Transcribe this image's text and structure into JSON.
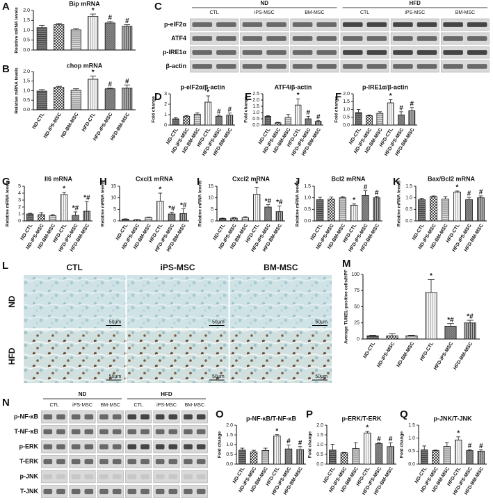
{
  "chart_data": [
    {
      "type": "bar",
      "panel": "A",
      "title": "Bip mRNA",
      "y_label": "Relative mRNA levels",
      "categories": [
        null,
        null,
        null,
        null,
        null,
        null
      ],
      "values": [
        1.13,
        1.28,
        1.02,
        1.7,
        1.37,
        1.2
      ],
      "errors": [
        0.12,
        0.06,
        0.06,
        0.12,
        0.07,
        0.08
      ],
      "annotations": [
        null,
        null,
        null,
        "*",
        "#",
        "#"
      ],
      "ylim": [
        0,
        2
      ],
      "yticks": [
        {
          "value": 0,
          "label": "0.0"
        },
        {
          "value": 0.5,
          "label": "0.5"
        },
        {
          "value": 1,
          "label": "1.0"
        },
        {
          "value": 1.5,
          "label": "1.5"
        },
        {
          "value": 2,
          "label": "2.0"
        }
      ]
    },
    {
      "type": "bar",
      "panel": "B",
      "title": "chop mRNA",
      "y_label": "Relative mRNA levels",
      "categories": [
        "ND-CTL",
        "ND-iPS-MSC",
        "ND-BM-MSC",
        "HFD-CTL",
        "HFD-iPS-MSC",
        "HFD-BM-MSC"
      ],
      "values": [
        0.98,
        1.17,
        1.02,
        1.6,
        1.1,
        1.13
      ],
      "errors": [
        0.08,
        0.06,
        0.08,
        0.17,
        0.03,
        0.17
      ],
      "annotations": [
        null,
        null,
        null,
        "*",
        "#",
        "#"
      ],
      "ylim": [
        0,
        2
      ],
      "yticks": [
        {
          "value": 0,
          "label": "0.0"
        },
        {
          "value": 0.5,
          "label": "0.5"
        },
        {
          "value": 1,
          "label": "1.0"
        },
        {
          "value": 1.5,
          "label": "1.5"
        },
        {
          "value": 2,
          "label": "2.0"
        }
      ]
    },
    {
      "type": "bar",
      "panel": "D",
      "title": "p-eIF2α/β-actin",
      "y_label": "Fold change",
      "categories": [
        "ND-CTL",
        "ND-iPS-MSC",
        "ND-BM-MSC",
        "HFD-CTL",
        "HFD-iPS-MSC",
        "HFD-BM-MSC"
      ],
      "values": [
        0.6,
        0.85,
        1.05,
        2.2,
        0.85,
        0.95
      ],
      "errors": [
        0.1,
        0.07,
        0.12,
        0.6,
        0.1,
        0.2
      ],
      "annotations": [
        null,
        null,
        null,
        "*",
        "#",
        "#"
      ],
      "ylim": [
        0,
        3
      ],
      "yticks": [
        0,
        1,
        2,
        3
      ]
    },
    {
      "type": "bar",
      "panel": "E",
      "title": "ATF4/β-actin",
      "y_label": "Fold change",
      "categories": [
        "ND-CTL",
        "ND-iPS-MSC",
        "ND-BM-MSC",
        "HFD-CTL",
        "HFD-iPS-MSC",
        "HFD-BM-MSC"
      ],
      "values": [
        0.7,
        0.18,
        0.6,
        1.6,
        0.5,
        0.3
      ],
      "errors": [
        0.05,
        0.04,
        0.25,
        0.5,
        0.2,
        0.05
      ],
      "annotations": [
        null,
        null,
        null,
        "*",
        "#",
        "#"
      ],
      "ylim": [
        0,
        2.5
      ],
      "yticks": [
        {
          "value": 0,
          "label": "0.0"
        },
        {
          "value": 0.5,
          "label": "0.5"
        },
        {
          "value": 1,
          "label": "1.0"
        },
        {
          "value": 1.5,
          "label": "1.5"
        },
        {
          "value": 2,
          "label": "2.0"
        },
        2.5
      ]
    },
    {
      "type": "bar",
      "panel": "F",
      "title": "p-IRE1α/β-actin",
      "y_label": "Fold change",
      "categories": [
        "ND-CTL",
        "ND-iPS-MSC",
        "ND-BM-MSC",
        "HFD-CTL",
        "HFD-iPS-MSC",
        "HFD-BM-MSC"
      ],
      "values": [
        0.8,
        0.6,
        0.75,
        1.42,
        0.65,
        0.92
      ],
      "errors": [
        0.2,
        0.05,
        0.1,
        0.2,
        0.2,
        0.2
      ],
      "annotations": [
        null,
        null,
        null,
        "*",
        "#",
        "#"
      ],
      "ylim": [
        0,
        2
      ],
      "yticks": [
        {
          "value": 0,
          "label": "0.0"
        },
        {
          "value": 0.5,
          "label": "0.5"
        },
        {
          "value": 1,
          "label": "1.0"
        },
        {
          "value": 1.5,
          "label": "1.5"
        },
        {
          "value": 2,
          "label": "2.0"
        }
      ]
    },
    {
      "type": "bar",
      "panel": "G",
      "title": "Il6 mRNA",
      "y_label": "Relative mRNA levels",
      "categories": [
        "ND-CTL",
        "ND-iPS-MSC",
        "ND-BM-MSC",
        "HFD-CTL",
        "HFD-iPS-MSC",
        "HFD-BM-MSC"
      ],
      "values": [
        1.0,
        0.9,
        0.75,
        3.8,
        0.8,
        1.4
      ],
      "errors": [
        0.1,
        0.3,
        0.15,
        0.3,
        0.5,
        1.4
      ],
      "annotations": [
        null,
        null,
        null,
        "*",
        "*#",
        "*#"
      ],
      "ylim": [
        0,
        5
      ],
      "yticks": [
        0,
        1,
        2,
        3,
        4,
        5
      ]
    },
    {
      "type": "bar",
      "panel": "H",
      "title": "Cxcl1 mRNA",
      "y_label": "Relative mRNA levels",
      "categories": [
        "ND-CTL",
        "ND-iPS-MSC",
        "ND-BM-MSC",
        "HFD-CTL",
        "HFD-iPS-MSC",
        "HFD-BM-MSC"
      ],
      "values": [
        0.8,
        0.5,
        1.5,
        8.5,
        3.0,
        3.2
      ],
      "errors": [
        0.1,
        0.1,
        0.2,
        3.5,
        0.8,
        2.0
      ],
      "annotations": [
        null,
        null,
        null,
        "*",
        "*#",
        "*#"
      ],
      "ylim": [
        0,
        15
      ],
      "yticks": [
        0,
        5,
        10,
        15
      ]
    },
    {
      "type": "bar",
      "panel": "I",
      "title": "Cxcl2 mRNA",
      "y_label": "Relative mRNA levels",
      "categories": [
        "ND-CTL",
        "ND-iPS-MSC",
        "ND-BM-MSC",
        "HFD-CTL",
        "HFD-iPS-MSC",
        "HFD-BM-MSC"
      ],
      "values": [
        1.0,
        1.2,
        1.4,
        11.5,
        6.0,
        4.0
      ],
      "errors": [
        0.2,
        0.3,
        0.4,
        3.0,
        1.0,
        2.5
      ],
      "annotations": [
        null,
        null,
        null,
        "*",
        "*#",
        "*#"
      ],
      "ylim": [
        0,
        15
      ],
      "yticks": [
        0,
        5,
        10,
        15
      ]
    },
    {
      "type": "bar",
      "panel": "J",
      "title": "Bcl2 mRNA",
      "y_label": "Relative mRNA levels",
      "categories": [
        "ND-CTL",
        "ND-iPS-MSC",
        "ND-BM-MSC",
        "HFD-CTL",
        "HFD-iPS-MSC",
        "HFD-BM-MSC"
      ],
      "values": [
        0.92,
        0.95,
        1.0,
        0.68,
        1.1,
        1.0
      ],
      "errors": [
        0.1,
        0.08,
        0.05,
        0.06,
        0.2,
        0.06
      ],
      "annotations": [
        null,
        null,
        null,
        "*",
        "#",
        "#"
      ],
      "ylim": [
        0,
        1.5
      ],
      "yticks": [
        {
          "value": 0,
          "label": "0.0"
        },
        {
          "value": 0.5,
          "label": "0.5"
        },
        {
          "value": 1,
          "label": "1.0"
        },
        {
          "value": 1.5,
          "label": "1.5"
        }
      ]
    },
    {
      "type": "bar",
      "panel": "K",
      "title": "Bax/Bcl2 mRNA",
      "y_label": "Relative mRNA levels",
      "categories": [
        "ND-CTL",
        "ND-iPS-MSC",
        "ND-BM-MSC",
        "HFD-CTL",
        "HFD-iPS-MSC",
        "HFD-BM-MSC"
      ],
      "values": [
        0.92,
        1.05,
        0.95,
        1.25,
        0.92,
        1.0
      ],
      "errors": [
        0.05,
        0.03,
        0.1,
        0.04,
        0.1,
        0.08
      ],
      "annotations": [
        null,
        null,
        null,
        "*",
        "#",
        "#"
      ],
      "ylim": [
        0,
        1.5
      ],
      "yticks": [
        {
          "value": 0,
          "label": "0.0"
        },
        {
          "value": 0.5,
          "label": "0.5"
        },
        {
          "value": 1,
          "label": "1.0"
        },
        {
          "value": 1.5,
          "label": "1.5"
        }
      ]
    },
    {
      "type": "bar",
      "panel": "M",
      "y_label": "Average TUNEL-positive cells/HPF",
      "categories": [
        "ND-CTL",
        "ND-iPS-MSC",
        "ND-BM-MSC",
        "HFD-CTL",
        "HFD-iPS-MSC",
        "HFD-BM-MSC"
      ],
      "values": [
        5,
        5,
        5,
        72,
        20,
        25
      ],
      "errors": [
        1,
        3,
        1,
        20,
        4,
        4
      ],
      "annotations": [
        null,
        null,
        null,
        "*",
        "*#",
        "*#"
      ],
      "ylim": [
        0,
        100
      ],
      "yticks": [
        0,
        25,
        50,
        75,
        100
      ]
    },
    {
      "type": "bar",
      "panel": "O",
      "title": "p-NF-κB/T-NF-κB",
      "y_label": "Fold change",
      "categories": [
        "ND-CTL",
        "ND-iPS-MSC",
        "ND-BM-MSC",
        "HFD-CTL",
        "HFD-iPS-MSC",
        "HFD-BM-MSC"
      ],
      "values": [
        0.72,
        0.63,
        0.7,
        1.45,
        0.78,
        0.75
      ],
      "errors": [
        0.1,
        0.08,
        0.12,
        0.06,
        0.2,
        0.15
      ],
      "annotations": [
        null,
        null,
        null,
        "*",
        "#",
        "#"
      ],
      "ylim": [
        0,
        2
      ],
      "yticks": [
        {
          "value": 0,
          "label": "0.0"
        },
        {
          "value": 0.5,
          "label": "0.5"
        },
        {
          "value": 1,
          "label": "1.0"
        },
        {
          "value": 1.5,
          "label": "1.5"
        },
        {
          "value": 2,
          "label": "2.0"
        }
      ]
    },
    {
      "type": "bar",
      "panel": "P",
      "title": "p-ERK/T-ERK",
      "y_label": "Fold change",
      "categories": [
        "ND-CTL",
        "ND-iPS-MSC",
        "ND-BM-MSC",
        "HFD-CTL",
        "HFD-iPS-MSC",
        "HFD-BM-MSC"
      ],
      "values": [
        0.72,
        0.58,
        0.8,
        1.6,
        1.05,
        0.9
      ],
      "errors": [
        0.3,
        0.02,
        0.3,
        0.08,
        0.05,
        0.2
      ],
      "annotations": [
        null,
        null,
        null,
        "*",
        "#",
        "#"
      ],
      "ylim": [
        0,
        2
      ],
      "yticks": [
        {
          "value": 0,
          "label": "0.0"
        },
        {
          "value": 0.5,
          "label": "0.5"
        },
        {
          "value": 1,
          "label": "1.0"
        },
        {
          "value": 1.5,
          "label": "1.5"
        },
        {
          "value": 2,
          "label": "2.0"
        }
      ]
    },
    {
      "type": "bar",
      "panel": "Q",
      "title": "p-JNK/T-JNK",
      "y_label": "Fold change",
      "categories": [
        "ND-CTL",
        "ND-iPS-MSC",
        "ND-BM-MSC",
        "HFD-CTL",
        "HFD-iPS-MSC",
        "HFD-BM-MSC"
      ],
      "values": [
        0.55,
        0.52,
        0.68,
        0.93,
        0.52,
        0.5
      ],
      "errors": [
        0.15,
        0.02,
        0.15,
        0.12,
        0.04,
        0.05
      ],
      "annotations": [
        null,
        null,
        null,
        "*",
        "#",
        "#"
      ],
      "ylim": [
        0,
        1.5
      ],
      "yticks": [
        {
          "value": 0,
          "label": "0.0"
        },
        {
          "value": 0.5,
          "label": "0.5"
        },
        {
          "value": 1,
          "label": "1.0"
        },
        {
          "value": 1.5,
          "label": "1.5"
        }
      ]
    }
  ],
  "blots": [
    {
      "panel": "C",
      "groups": [
        "ND",
        "HFD"
      ],
      "lanes": [
        "CTL",
        "iPS-MSC",
        "BM-MSC",
        "CTL",
        "iPS-MSC",
        "BM-MSC"
      ],
      "rows": [
        "p-eIF2α",
        "ATF4",
        "p-IRE1α",
        "β-actin"
      ]
    },
    {
      "panel": "N",
      "groups": [
        "ND",
        "HFD"
      ],
      "lanes": [
        "CTL",
        "iPS-MSC",
        "BM-MSC",
        "CTL",
        "iPS-MSC",
        "BM-MSC"
      ],
      "rows": [
        "p-NF-κB",
        "T-NF-κB",
        "p-ERK",
        "T-ERK",
        "p-JNK",
        "T-JNK"
      ]
    }
  ],
  "histology": {
    "panel": "L",
    "columns": [
      "CTL",
      "iPS-MSC",
      "BM-MSC"
    ],
    "rows": [
      "ND",
      "HFD"
    ],
    "scale_bar": "50μm"
  }
}
